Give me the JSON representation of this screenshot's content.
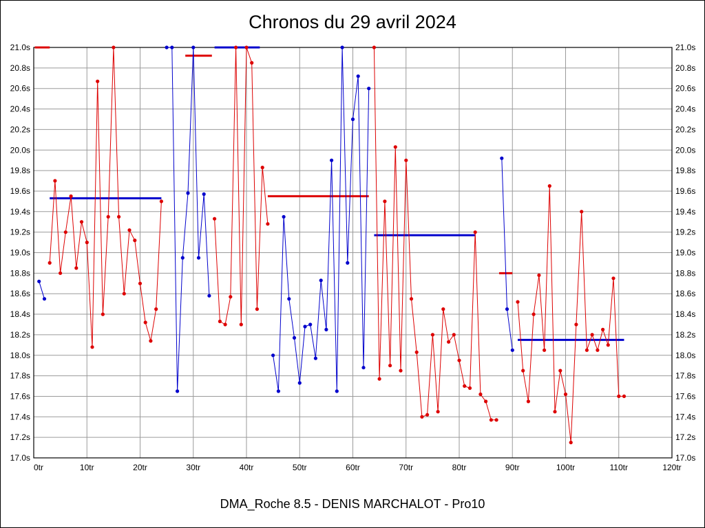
{
  "chart_data": {
    "type": "line",
    "title": "Chronos du 29 avril 2024",
    "footer": "DMA_Roche 8.5 - DENIS MARCHALOT - Pro10",
    "xlabel": "",
    "ylabel": "",
    "xlim": [
      0,
      120
    ],
    "ylim": [
      17.0,
      21.0
    ],
    "grid": true,
    "legend": "none",
    "xtick_values": [
      0,
      10,
      20,
      30,
      40,
      50,
      60,
      70,
      80,
      90,
      100,
      110,
      120
    ],
    "xtick_labels": [
      "0tr",
      "10tr",
      "20tr",
      "30tr",
      "40tr",
      "50tr",
      "60tr",
      "70tr",
      "80tr",
      "90tr",
      "100tr",
      "110tr",
      "120tr"
    ],
    "ytick_values": [
      17.0,
      17.2,
      17.4,
      17.6,
      17.8,
      18.0,
      18.2,
      18.4,
      18.6,
      18.8,
      19.0,
      19.2,
      19.4,
      19.6,
      19.8,
      20.0,
      20.2,
      20.4,
      20.6,
      20.8,
      21.0
    ],
    "ytick_labels": [
      "17.0s",
      "17.2s",
      "17.4s",
      "17.6s",
      "17.8s",
      "18.0s",
      "18.2s",
      "18.4s",
      "18.6s",
      "18.8s",
      "19.0s",
      "19.2s",
      "19.4s",
      "19.6s",
      "19.8s",
      "20.0s",
      "20.2s",
      "20.4s",
      "20.6s",
      "20.8s",
      "21.0s"
    ],
    "colors": {
      "red_series": "#dd0000",
      "blue_series": "#0000cc",
      "grid": "#9a9a9a",
      "axis": "#000000"
    },
    "series": [
      {
        "name": "red",
        "color": "#dd0000",
        "stints": [
          [
            [
              3,
              18.9
            ],
            [
              4,
              19.7
            ],
            [
              5,
              18.8
            ],
            [
              6,
              19.2
            ],
            [
              7,
              19.55
            ],
            [
              8,
              18.85
            ],
            [
              9,
              19.3
            ],
            [
              10,
              19.1
            ],
            [
              11,
              18.08
            ],
            [
              12,
              20.67
            ],
            [
              13,
              18.4
            ],
            [
              14,
              19.35
            ],
            [
              15,
              21.0
            ],
            [
              16,
              19.35
            ],
            [
              17,
              18.6
            ],
            [
              18,
              19.22
            ],
            [
              19,
              19.12
            ],
            [
              20,
              18.7
            ],
            [
              21,
              18.32
            ],
            [
              22,
              18.14
            ],
            [
              23,
              18.45
            ],
            [
              24,
              19.5
            ]
          ],
          [
            [
              34,
              19.33
            ],
            [
              35,
              18.33
            ],
            [
              36,
              18.3
            ],
            [
              37,
              18.57
            ],
            [
              38,
              21.0
            ],
            [
              39,
              18.3
            ],
            [
              40,
              21.0
            ],
            [
              41,
              20.85
            ],
            [
              42,
              18.45
            ],
            [
              43,
              19.83
            ],
            [
              44,
              19.28
            ]
          ],
          [
            [
              64,
              21.0
            ],
            [
              65,
              17.77
            ],
            [
              66,
              19.5
            ],
            [
              67,
              17.9
            ],
            [
              68,
              20.03
            ],
            [
              69,
              17.85
            ],
            [
              70,
              19.9
            ],
            [
              71,
              18.55
            ],
            [
              72,
              18.03
            ],
            [
              73,
              17.4
            ],
            [
              74,
              17.42
            ],
            [
              75,
              18.2
            ],
            [
              76,
              17.45
            ],
            [
              77,
              18.45
            ],
            [
              78,
              18.13
            ],
            [
              79,
              18.2
            ],
            [
              80,
              17.95
            ],
            [
              81,
              17.7
            ],
            [
              82,
              17.68
            ],
            [
              83,
              19.2
            ],
            [
              84,
              17.62
            ],
            [
              85,
              17.55
            ],
            [
              86,
              17.37
            ],
            [
              87,
              17.37
            ]
          ],
          [
            [
              91,
              18.52
            ],
            [
              92,
              17.85
            ],
            [
              93,
              17.55
            ],
            [
              94,
              18.4
            ],
            [
              95,
              18.78
            ],
            [
              96,
              18.05
            ],
            [
              97,
              19.65
            ],
            [
              98,
              17.45
            ],
            [
              99,
              17.85
            ],
            [
              100,
              17.62
            ],
            [
              101,
              17.15
            ],
            [
              102,
              18.3
            ],
            [
              103,
              19.4
            ],
            [
              104,
              18.05
            ],
            [
              105,
              18.2
            ],
            [
              106,
              18.05
            ],
            [
              107,
              18.25
            ],
            [
              108,
              18.1
            ],
            [
              109,
              18.75
            ],
            [
              110,
              17.6
            ],
            [
              111,
              17.6
            ]
          ]
        ]
      },
      {
        "name": "blue",
        "color": "#0000cc",
        "stints": [
          [
            [
              1,
              18.72
            ],
            [
              2,
              18.55
            ]
          ],
          [
            [
              25,
              21.0
            ],
            [
              26,
              21.0
            ],
            [
              27,
              17.65
            ],
            [
              28,
              18.95
            ],
            [
              29,
              19.58
            ],
            [
              30,
              21.0
            ],
            [
              31,
              18.95
            ],
            [
              32,
              19.57
            ],
            [
              33,
              18.58
            ]
          ],
          [
            [
              45,
              18.0
            ],
            [
              46,
              17.65
            ],
            [
              47,
              19.35
            ],
            [
              48,
              18.55
            ],
            [
              49,
              18.17
            ],
            [
              50,
              17.73
            ],
            [
              51,
              18.28
            ],
            [
              52,
              18.3
            ],
            [
              53,
              17.97
            ],
            [
              54,
              18.73
            ],
            [
              55,
              18.25
            ],
            [
              56,
              19.9
            ],
            [
              57,
              17.65
            ],
            [
              58,
              21.0
            ],
            [
              59,
              18.9
            ],
            [
              60,
              20.3
            ],
            [
              61,
              20.72
            ],
            [
              62,
              17.88
            ],
            [
              63,
              20.6
            ]
          ],
          [
            [
              88,
              19.92
            ],
            [
              89,
              18.45
            ],
            [
              90,
              18.05
            ]
          ]
        ]
      }
    ],
    "average_segments": [
      {
        "name": "red-average-1",
        "color": "#dd0000",
        "x1": 0.2,
        "x2": 3,
        "y": 21.0
      },
      {
        "name": "blue-average-1",
        "color": "#0000cc",
        "x1": 3,
        "x2": 24,
        "y": 19.53
      },
      {
        "name": "red-average-2",
        "color": "#dd0000",
        "x1": 28.5,
        "x2": 33.5,
        "y": 20.92
      },
      {
        "name": "blue-average-2",
        "color": "#0000cc",
        "x1": 34,
        "x2": 42.5,
        "y": 21.0
      },
      {
        "name": "red-average-3",
        "color": "#dd0000",
        "x1": 44,
        "x2": 63,
        "y": 19.55
      },
      {
        "name": "blue-average-3",
        "color": "#0000cc",
        "x1": 64,
        "x2": 83,
        "y": 19.17
      },
      {
        "name": "red-average-4",
        "color": "#dd0000",
        "x1": 87.5,
        "x2": 90,
        "y": 18.8
      },
      {
        "name": "blue-average-4",
        "color": "#0000cc",
        "x1": 91,
        "x2": 111,
        "y": 18.15
      }
    ]
  }
}
